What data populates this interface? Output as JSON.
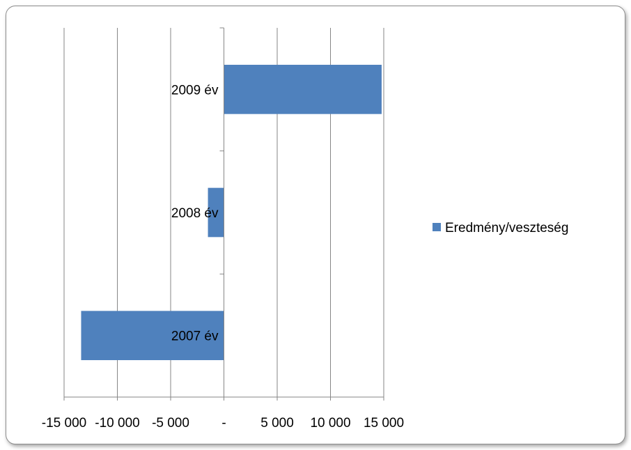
{
  "chart_data": {
    "type": "bar",
    "orientation": "horizontal",
    "categories": [
      "2007 év",
      "2008 év",
      "2009 év"
    ],
    "series": [
      {
        "name": "Eredmény/veszteség",
        "values": [
          -13400,
          -1500,
          14800
        ],
        "color": "#4f81bd"
      }
    ],
    "xlim": [
      -15000,
      15000
    ],
    "x_ticks": [
      -15000,
      -10000,
      -5000,
      0,
      5000,
      10000,
      15000
    ],
    "x_tick_labels": [
      "-15 000",
      "-10 000",
      "-5 000",
      "-",
      "5 000",
      "10 000",
      "15 000"
    ],
    "grid": true,
    "legend_position": "right",
    "title": "",
    "xlabel": "",
    "ylabel": ""
  }
}
